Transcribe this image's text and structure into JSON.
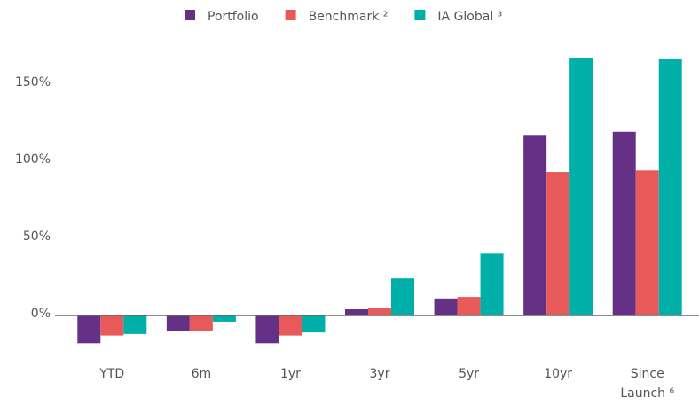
{
  "chart_data": {
    "type": "bar",
    "categories": [
      "YTD",
      "6m",
      "1yr",
      "3yr",
      "5yr",
      "10yr",
      "Since Launch ⁶"
    ],
    "series": [
      {
        "name": "Portfolio",
        "color": "#653187",
        "values": [
          -18,
          -10,
          -18,
          4,
          11,
          117,
          119
        ]
      },
      {
        "name": "Benchmark ²",
        "color": "#e85a5a",
        "values": [
          -13,
          -10,
          -13,
          5,
          12,
          93,
          94
        ]
      },
      {
        "name": "IA Global ³",
        "color": "#00b0a8",
        "values": [
          -12,
          -4,
          -11,
          24,
          40,
          167,
          166
        ]
      }
    ],
    "ylim": [
      -25,
      170
    ],
    "yticks": [
      {
        "value": 0,
        "label": "0%"
      },
      {
        "value": 50,
        "label": "50%"
      },
      {
        "value": 100,
        "label": "100%"
      },
      {
        "value": 150,
        "label": "150%"
      }
    ],
    "legend": "top"
  }
}
